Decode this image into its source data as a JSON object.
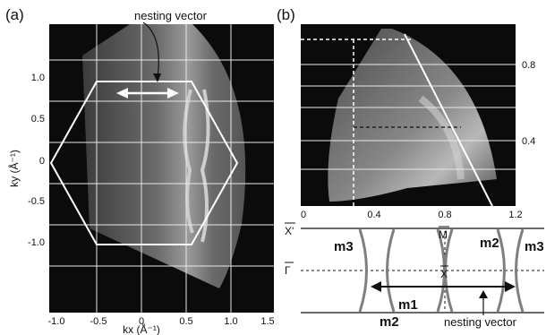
{
  "panel_a": {
    "label": "(a)",
    "annotation": "nesting vector",
    "x_axis_label": "kx (Å⁻¹)",
    "y_axis_label": "ky (Å⁻¹)",
    "x_ticks": [
      "-1.0",
      "-0.5",
      "0",
      "0.5",
      "1.0",
      "1.5"
    ],
    "y_ticks": [
      "1.0",
      "0.5",
      "0",
      "-0.5",
      "-1.0"
    ]
  },
  "panel_b": {
    "label": "(b)",
    "x_ticks": [
      "0",
      "0.4",
      "0.8",
      "1.2"
    ],
    "y_ticks_right": [
      "0.8",
      "0.4"
    ]
  },
  "schematic": {
    "symbols": {
      "x_prime": "X'",
      "m_bar": "M",
      "x_bar": "X",
      "gamma_bar": "Γ"
    },
    "band_labels": {
      "m3_left": "m3",
      "m3_right": "m3",
      "m2_top": "m2",
      "m2_bottom": "m2",
      "m1": "m1"
    },
    "annotation": "nesting vector"
  },
  "colors": {
    "map_dark": "#0b0b0b",
    "map_grid": "#e8e8e8",
    "band_line": "#7f7f7f",
    "ink": "#111111"
  }
}
